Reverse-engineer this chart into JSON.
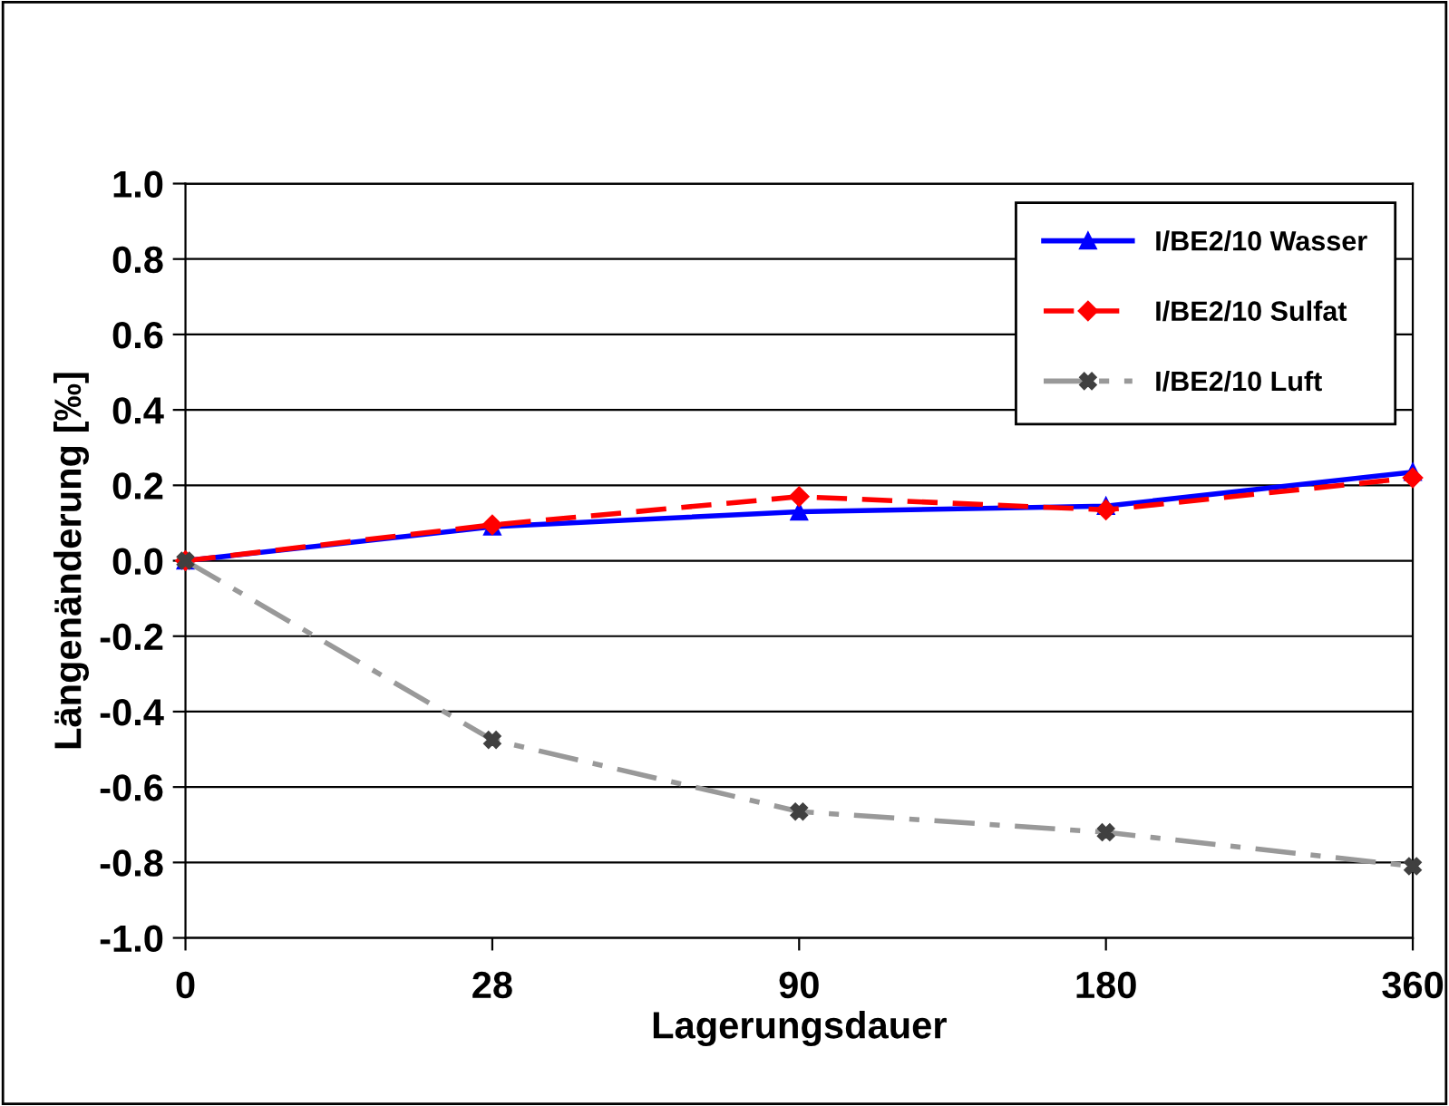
{
  "chart_data": {
    "type": "line",
    "xlabel": "Lagerungsdauer",
    "ylabel": "Längenänderung [‰]",
    "categories": [
      "0",
      "28",
      "90",
      "180",
      "360"
    ],
    "series": [
      {
        "name": "I/BE2/10 Wasser",
        "color": "#0000ff",
        "marker": "triangle",
        "line_style": "solid",
        "values": [
          0.0,
          0.09,
          0.13,
          0.145,
          0.235
        ]
      },
      {
        "name": "I/BE2/10 Sulfat",
        "color": "#ff0000",
        "marker": "diamond",
        "line_style": "dashed",
        "values": [
          0.0,
          0.095,
          0.17,
          0.135,
          0.22
        ]
      },
      {
        "name": "I/BE2/10 Luft",
        "color": "#999999",
        "marker": "cross",
        "line_style": "dashdot",
        "values": [
          0.0,
          -0.475,
          -0.665,
          -0.72,
          -0.81
        ]
      }
    ],
    "ylim": [
      -1.0,
      1.0
    ],
    "yticks": [
      {
        "value": -1.0,
        "label": "-1.0"
      },
      {
        "value": -0.8,
        "label": "-0.8"
      },
      {
        "value": -0.6,
        "label": "-0.6"
      },
      {
        "value": -0.4,
        "label": "-0.4"
      },
      {
        "value": -0.2,
        "label": "-0.2"
      },
      {
        "value": 0.0,
        "label": "0.0"
      },
      {
        "value": 0.2,
        "label": "0.2"
      },
      {
        "value": 0.4,
        "label": "0.4"
      },
      {
        "value": 0.6,
        "label": "0.6"
      },
      {
        "value": 0.8,
        "label": "0.8"
      },
      {
        "value": 1.0,
        "label": "1.0"
      }
    ],
    "grid": "y",
    "legend": "top right"
  }
}
